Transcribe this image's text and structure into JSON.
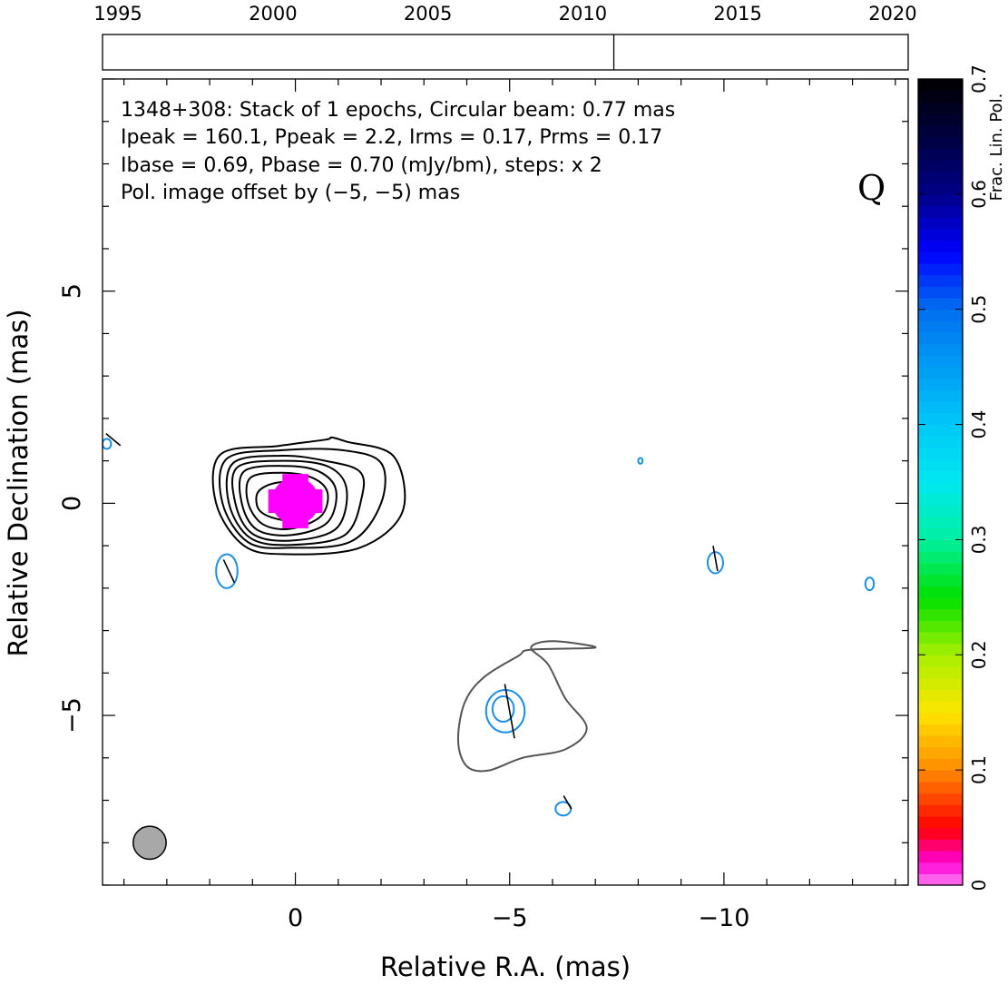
{
  "colors": {
    "intensity_contour": "#000000",
    "intensity_outer_contour": "#555555",
    "polarization_contour": "#1a8fe6",
    "polarization_note": "#1a8fe6",
    "beam_fill": "#a8a8a8",
    "peak_fill": "#ff00ff"
  },
  "timeline": {
    "years": [
      "1995",
      "2000",
      "2005",
      "2010",
      "2015",
      "2020"
    ],
    "range": [
      1994.5,
      2020.5
    ],
    "epochs": [
      2011.0
    ]
  },
  "chart_data": {
    "type": "contour",
    "source": "1348+308",
    "annotations": {
      "line1": "1348+308: Stack of 1 epochs, Circular beam: 0.77 mas",
      "line2": "Ipeak = 160.1, Ppeak = 2.2, Irms = 0.17, Prms = 0.17",
      "line3": "Ibase = 0.69, Pbase = 0.70 (mJy/bm), steps: x 2",
      "pol_note": "Pol. image offset by (−5, −5) mas",
      "band": "Q"
    },
    "xlabel": "Relative R.A. (mas)",
    "ylabel": "Relative Declination (mas)",
    "xlim": [
      4.5,
      -14.3
    ],
    "ylim": [
      -9.0,
      10.0
    ],
    "xticks": [
      0,
      -5,
      -10
    ],
    "xtick_labels": [
      "0",
      "−5",
      "−10"
    ],
    "yticks": [
      5,
      0,
      -5
    ],
    "ytick_labels": [
      "5",
      "0",
      "−5"
    ],
    "beam": {
      "diameter_mas": 0.77,
      "center": [
        3.4,
        -8.0
      ]
    },
    "intensity_core": {
      "center": [
        0.05,
        0.1
      ],
      "contours": [
        [
          [
            0.7,
            0.4
          ],
          [
            0.9,
            0.2
          ],
          [
            0.85,
            -0.15
          ],
          [
            0.5,
            -0.35
          ],
          [
            0.0,
            -0.4
          ],
          [
            -0.45,
            -0.15
          ],
          [
            -0.5,
            0.2
          ],
          [
            -0.2,
            0.45
          ],
          [
            0.3,
            0.5
          ]
        ],
        [
          [
            1.05,
            0.6
          ],
          [
            1.1,
            0.0
          ],
          [
            0.75,
            -0.5
          ],
          [
            0.1,
            -0.6
          ],
          [
            -0.6,
            -0.3
          ],
          [
            -0.75,
            0.25
          ],
          [
            -0.4,
            0.6
          ],
          [
            0.3,
            0.72
          ]
        ],
        [
          [
            1.2,
            0.75
          ],
          [
            1.25,
            0.0
          ],
          [
            0.9,
            -0.62
          ],
          [
            0.1,
            -0.75
          ],
          [
            -0.75,
            -0.45
          ],
          [
            -0.95,
            0.3
          ],
          [
            -0.55,
            0.75
          ],
          [
            0.25,
            0.88
          ]
        ],
        [
          [
            1.35,
            0.85
          ],
          [
            1.4,
            0.0
          ],
          [
            1.0,
            -0.72
          ],
          [
            0.1,
            -0.88
          ],
          [
            -0.95,
            -0.6
          ],
          [
            -1.2,
            0.3
          ],
          [
            -0.8,
            0.85
          ],
          [
            0.2,
            1.0
          ]
        ],
        [
          [
            1.45,
            0.95
          ],
          [
            1.55,
            0.0
          ],
          [
            1.05,
            -0.82
          ],
          [
            0.1,
            -0.98
          ],
          [
            -1.15,
            -0.75
          ],
          [
            -1.55,
            0.15
          ],
          [
            -1.5,
            0.75
          ],
          [
            -0.7,
            1.0
          ],
          [
            0.3,
            1.12
          ]
        ],
        [
          [
            1.6,
            1.05
          ],
          [
            1.7,
            0.0
          ],
          [
            1.1,
            -0.92
          ],
          [
            0.1,
            -1.05
          ],
          [
            -1.3,
            -0.9
          ],
          [
            -2.0,
            0.0
          ],
          [
            -2.0,
            0.95
          ],
          [
            -1.1,
            1.25
          ],
          [
            0.3,
            1.25
          ]
        ],
        [
          [
            1.75,
            1.15
          ],
          [
            1.85,
            0.0
          ],
          [
            1.2,
            -1.0
          ],
          [
            0.2,
            -1.2
          ],
          [
            -1.5,
            -1.05
          ],
          [
            -2.5,
            -0.2
          ],
          [
            -2.3,
            1.1
          ],
          [
            -1.2,
            1.45
          ],
          [
            -0.85,
            1.55
          ],
          [
            -0.7,
            1.5
          ],
          [
            0.4,
            1.35
          ]
        ]
      ]
    },
    "intensity_outer": {
      "contours": [
        [
          [
            -7.0,
            -3.4
          ],
          [
            -6.0,
            -3.25
          ],
          [
            -5.5,
            -3.4
          ],
          [
            -5.9,
            -3.8
          ],
          [
            -6.3,
            -4.6
          ],
          [
            -6.8,
            -5.3
          ],
          [
            -6.3,
            -5.8
          ],
          [
            -5.3,
            -6.0
          ],
          [
            -4.5,
            -6.3
          ],
          [
            -4.0,
            -6.2
          ],
          [
            -3.8,
            -5.6
          ],
          [
            -3.95,
            -4.7
          ],
          [
            -4.4,
            -4.1
          ],
          [
            -5.2,
            -3.6
          ],
          [
            -5.5,
            -3.45
          ]
        ]
      ]
    },
    "polarization_contours": [
      {
        "center": [
          -4.9,
          -4.9
        ],
        "rx": 0.45,
        "ry": 0.5
      },
      {
        "center": [
          -4.85,
          -4.85
        ],
        "rx": 0.25,
        "ry": 0.3
      },
      {
        "center": [
          1.6,
          -1.6
        ],
        "rx": 0.25,
        "ry": 0.4
      },
      {
        "center": [
          -9.8,
          -1.4
        ],
        "rx": 0.18,
        "ry": 0.25
      },
      {
        "center": [
          -13.4,
          -1.9
        ],
        "rx": 0.1,
        "ry": 0.15
      },
      {
        "center": [
          -6.25,
          -7.2
        ],
        "rx": 0.18,
        "ry": 0.16
      },
      {
        "center": [
          -8.05,
          1.0
        ],
        "rx": 0.05,
        "ry": 0.07
      },
      {
        "center": [
          4.4,
          1.4
        ],
        "rx": 0.1,
        "ry": 0.12
      }
    ],
    "evpa_vectors": [
      {
        "center": [
          -5.0,
          -4.9
        ],
        "half_len": 0.65,
        "angle_deg": 80
      },
      {
        "center": [
          1.55,
          -1.6
        ],
        "half_len": 0.3,
        "angle_deg": 65
      },
      {
        "center": [
          -9.8,
          -1.3
        ],
        "half_len": 0.3,
        "angle_deg": 80
      },
      {
        "center": [
          -6.35,
          -7.05
        ],
        "half_len": 0.18,
        "angle_deg": 60
      },
      {
        "center": [
          4.25,
          1.5
        ],
        "half_len": 0.22,
        "angle_deg": 40
      }
    ],
    "peak_fraction_pixels": {
      "center": [
        0.0,
        0.05
      ],
      "radius_mas": 0.55,
      "value": 0.02
    },
    "colorbar": {
      "label": "Frac. Lin. Pol.",
      "range": [
        0,
        0.7
      ],
      "ticks": [
        0,
        0.1,
        0.2,
        0.3,
        0.4,
        0.5,
        0.6,
        0.7
      ],
      "tick_labels": [
        "0",
        "0.1",
        "0.2",
        "0.3",
        "0.4",
        "0.5",
        "0.6",
        "0.7"
      ],
      "stops": [
        {
          "v": 0.0,
          "color": "#ff7ff0"
        },
        {
          "v": 0.02,
          "color": "#ff00d8"
        },
        {
          "v": 0.05,
          "color": "#ff0000"
        },
        {
          "v": 0.1,
          "color": "#ff8a00"
        },
        {
          "v": 0.15,
          "color": "#ffe600"
        },
        {
          "v": 0.2,
          "color": "#a8f000"
        },
        {
          "v": 0.25,
          "color": "#00e000"
        },
        {
          "v": 0.3,
          "color": "#00f0a0"
        },
        {
          "v": 0.35,
          "color": "#00e8f0"
        },
        {
          "v": 0.4,
          "color": "#00c8f8"
        },
        {
          "v": 0.5,
          "color": "#0070f0"
        },
        {
          "v": 0.55,
          "color": "#0000ff"
        },
        {
          "v": 0.6,
          "color": "#000088"
        },
        {
          "v": 0.65,
          "color": "#000040"
        },
        {
          "v": 0.7,
          "color": "#000000"
        }
      ]
    }
  }
}
